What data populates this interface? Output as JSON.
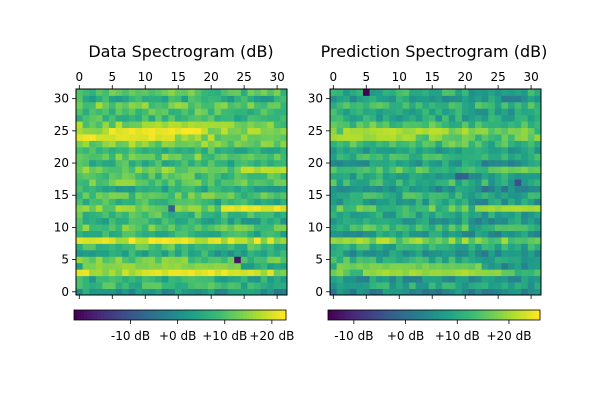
{
  "chart_data": [
    {
      "type": "heatmap",
      "title": "Data Spectrogram (dB)",
      "x_ticks": [
        "0",
        "5",
        "10",
        "15",
        "20",
        "25",
        "30"
      ],
      "y_ticks": [
        "0",
        "5",
        "10",
        "15",
        "20",
        "25",
        "30"
      ],
      "xlim": [
        -0.5,
        31.5
      ],
      "ylim": [
        -0.5,
        31.5
      ],
      "colormap": "viridis",
      "colorbar": {
        "range_db": [
          -22,
          23
        ],
        "ticks": [
          -10,
          0,
          10,
          20
        ],
        "tick_labels": [
          "-10 dB",
          "+0 dB",
          "+10 dB",
          "+20 dB"
        ]
      },
      "row_levels_db": [
        2,
        8,
        6,
        18,
        7,
        12,
        6,
        10,
        20,
        8,
        12,
        7,
        9,
        14,
        8,
        11,
        6,
        12,
        10,
        13,
        8,
        12,
        8,
        14,
        16,
        17,
        14,
        9,
        10,
        13,
        7,
        11
      ],
      "highlights_db": [
        {
          "row": 3,
          "cols": [
            10,
            26
          ],
          "value": 21
        },
        {
          "row": 4,
          "cols": [
            1,
            24
          ],
          "value": 15
        },
        {
          "row": 8,
          "cols": [
            0,
            5
          ],
          "value": 21
        },
        {
          "row": 13,
          "cols": [
            22,
            31
          ],
          "value": 21
        },
        {
          "row": 19,
          "cols": [
            25,
            31
          ],
          "value": 18
        },
        {
          "row": 24,
          "cols": [
            0,
            14
          ],
          "value": 21
        },
        {
          "row": 25,
          "cols": [
            5,
            18
          ],
          "value": 22
        },
        {
          "row": 26,
          "cols": [
            10,
            22
          ],
          "value": 17
        },
        {
          "row": 5,
          "cols": [
            24,
            24
          ],
          "value": -20
        },
        {
          "row": 13,
          "cols": [
            14,
            14
          ],
          "value": -8
        }
      ]
    },
    {
      "type": "heatmap",
      "title": "Prediction Spectrogram (dB)",
      "x_ticks": [
        "0",
        "5",
        "10",
        "15",
        "20",
        "25",
        "30"
      ],
      "y_ticks": [
        "0",
        "5",
        "10",
        "15",
        "20",
        "25",
        "30"
      ],
      "xlim": [
        -0.5,
        31.5
      ],
      "ylim": [
        -0.5,
        31.5
      ],
      "colormap": "viridis",
      "colorbar": {
        "range_db": [
          -15,
          26
        ],
        "ticks": [
          -10,
          0,
          10,
          20
        ],
        "tick_labels": [
          "-10 dB",
          "+0 dB",
          "+10 dB",
          "+20 dB"
        ]
      },
      "row_levels_db": [
        4,
        9,
        7,
        16,
        8,
        12,
        7,
        11,
        18,
        8,
        13,
        8,
        10,
        14,
        9,
        11,
        6,
        12,
        10,
        14,
        8,
        12,
        9,
        14,
        17,
        17,
        14,
        10,
        10,
        13,
        8,
        11
      ],
      "highlights_db": [
        {
          "row": 3,
          "cols": [
            6,
            25
          ],
          "value": 20
        },
        {
          "row": 4,
          "cols": [
            1,
            22
          ],
          "value": 17
        },
        {
          "row": 8,
          "cols": [
            0,
            5
          ],
          "value": 20
        },
        {
          "row": 13,
          "cols": [
            22,
            31
          ],
          "value": 20
        },
        {
          "row": 19,
          "cols": [
            25,
            31
          ],
          "value": 17
        },
        {
          "row": 24,
          "cols": [
            0,
            12
          ],
          "value": 20
        },
        {
          "row": 25,
          "cols": [
            5,
            16
          ],
          "value": 21
        },
        {
          "row": 31,
          "cols": [
            5,
            5
          ],
          "value": -15
        },
        {
          "row": 18,
          "cols": [
            19,
            20
          ],
          "value": -3
        },
        {
          "row": 17,
          "cols": [
            28,
            28
          ],
          "value": -6
        }
      ]
    }
  ]
}
